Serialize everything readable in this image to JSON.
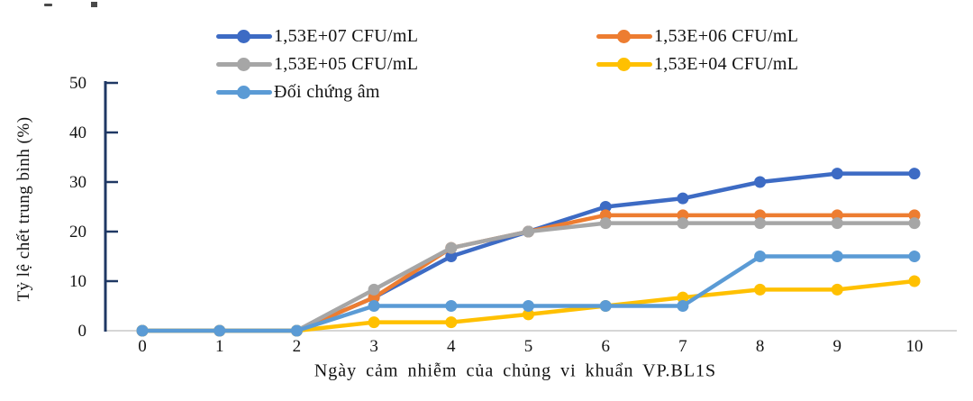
{
  "chart_data": {
    "type": "line",
    "title": "",
    "xlabel": "Ngày cảm nhiễm của chủng vi khuẩn VP.BL1S",
    "ylabel": "Tỷ lệ chết trung bình (%)",
    "x": [
      0,
      1,
      2,
      3,
      4,
      5,
      6,
      7,
      8,
      9,
      10
    ],
    "ylim": [
      0,
      50
    ],
    "ytick_step": 10,
    "grid": false,
    "legend_position": "top",
    "axis_color": "#1f3864",
    "baseline_color": "#c8c8c8",
    "series": [
      {
        "name": "1,53E+07 CFU/mL",
        "color": "#3d6bc4",
        "values": [
          0,
          0,
          0,
          6.7,
          15,
          20,
          25,
          26.7,
          30,
          31.7,
          31.7
        ]
      },
      {
        "name": "1,53E+06 CFU/mL",
        "color": "#ed7d31",
        "values": [
          0,
          0,
          0,
          6.7,
          16.7,
          20,
          23.3,
          23.3,
          23.3,
          23.3,
          23.3
        ]
      },
      {
        "name": "1,53E+05 CFU/mL",
        "color": "#a6a6a6",
        "values": [
          0,
          0,
          0,
          8.3,
          16.7,
          20,
          21.7,
          21.7,
          21.7,
          21.7,
          21.7
        ]
      },
      {
        "name": "1,53E+04 CFU/mL",
        "color": "#ffc000",
        "values": [
          0,
          0,
          0,
          1.7,
          1.7,
          3.3,
          5,
          6.7,
          8.3,
          8.3,
          10
        ]
      },
      {
        "name": "Đối chứng âm",
        "color": "#5b9bd5",
        "values": [
          0,
          0,
          0,
          5,
          5,
          5,
          5,
          5,
          15,
          15,
          15
        ]
      }
    ]
  }
}
